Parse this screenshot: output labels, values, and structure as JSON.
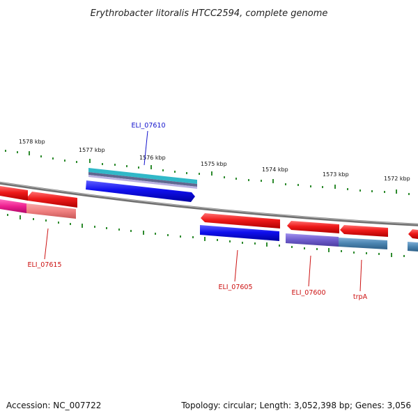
{
  "title": "Erythrobacter litoralis HTCC2594, complete genome",
  "accession": "Accession: NC_007722",
  "summary": "Topology: circular; Length: 3,052,398 bp; Genes: 3,056",
  "scale_labels": [
    "1578 kbp",
    "1577 kbp",
    "1576 kbp",
    "1575 kbp",
    "1574 kbp",
    "1573 kbp",
    "1572 kbp"
  ],
  "gene_labels": [
    "ELI_07610",
    "ELI_07615",
    "ELI_07605",
    "ELI_07600",
    "trpA"
  ],
  "colors": {
    "backbone": "#808080",
    "ticks": "#2e8b2e",
    "blue_label": "#1010cc",
    "red_label": "#cc1010",
    "red": "#ee1a1a",
    "pink": "#f08080",
    "magenta": "#ee2090",
    "blue": "#1010ee",
    "purple": "#6e5ccc",
    "steel": "#4a84b0",
    "cyan": "#30b8c8"
  }
}
